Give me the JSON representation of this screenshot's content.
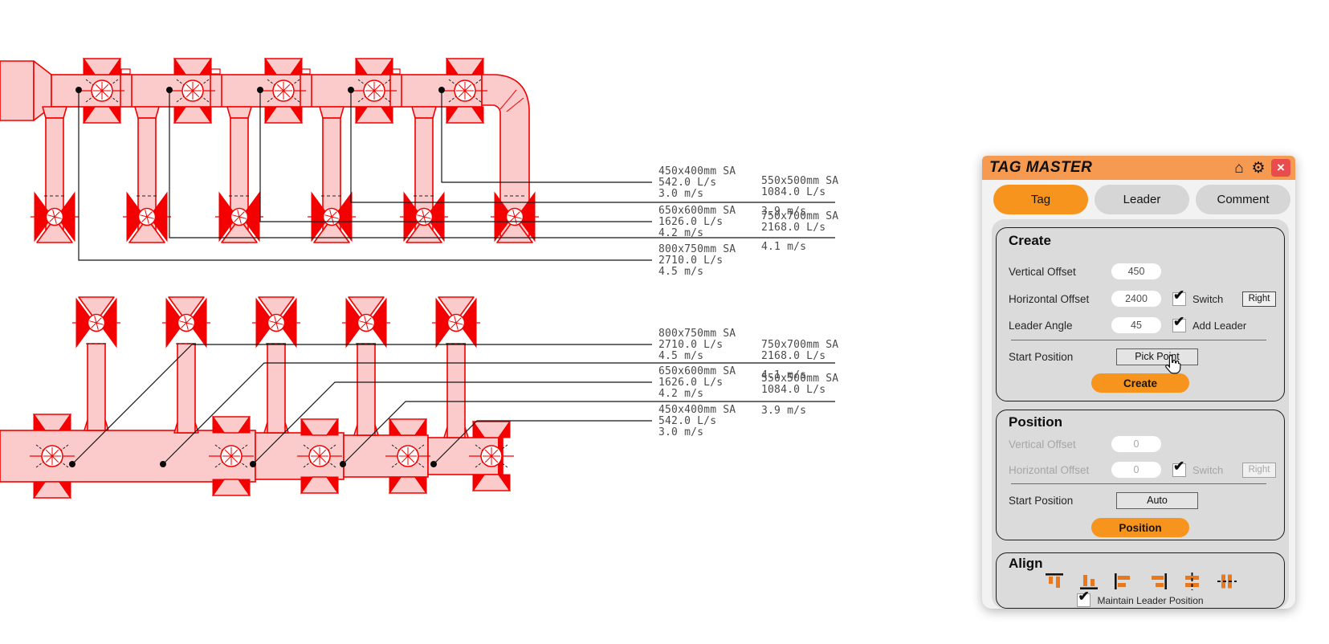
{
  "icons": {
    "home": "⌂",
    "gear": "⚙",
    "close": "×",
    "check": "✔"
  },
  "panel": {
    "title": "TAG MASTER",
    "tabs": [
      {
        "label": "Tag",
        "active": true
      },
      {
        "label": "Leader",
        "active": false
      },
      {
        "label": "Comment",
        "active": false
      }
    ],
    "create": {
      "heading": "Create",
      "vertical_offset_label": "Vertical Offset",
      "vertical_offset_value": "450",
      "horizontal_offset_label": "Horizontal Offset",
      "horizontal_offset_value": "2400",
      "switch_label": "Switch",
      "switch_checked": true,
      "right_button_label": "Right",
      "leader_angle_label": "Leader Angle",
      "leader_angle_value": "45",
      "add_leader_label": "Add Leader",
      "add_leader_checked": true,
      "start_position_label": "Start Position",
      "pick_point_label": "Pick Point",
      "create_button_label": "Create"
    },
    "position": {
      "heading": "Position",
      "vertical_offset_label": "Vertical Offset",
      "vertical_offset_value": "0",
      "horizontal_offset_label": "Horizontal Offset",
      "horizontal_offset_value": "0",
      "switch_label": "Switch",
      "switch_checked": true,
      "right_button_label": "Right",
      "start_position_label": "Start Position",
      "auto_label": "Auto",
      "position_button_label": "Position"
    },
    "align": {
      "heading": "Align",
      "buttons": [
        {
          "name": "align-top"
        },
        {
          "name": "align-bottom"
        },
        {
          "name": "align-left"
        },
        {
          "name": "align-right"
        },
        {
          "name": "align-center-vertical"
        },
        {
          "name": "align-center-horizontal"
        }
      ],
      "maintain_label": "Maintain Leader Position",
      "maintain_checked": true
    },
    "colors": {
      "header": "#f79a51",
      "accent": "#f7941d",
      "close": "#e84c4c",
      "icon_orange": "#e8781e"
    }
  },
  "drawing": {
    "colors": {
      "duct_fill": "#fbcaca",
      "duct_line": "#f40000",
      "leader": "#151515",
      "tag_text": "#4a4a4a"
    },
    "tags_top_left": [
      {
        "size": "450x400mm SA",
        "flow": "542.0 L/s",
        "velocity": "3.0 m/s"
      },
      {
        "size": "650x600mm SA",
        "flow": "1626.0 L/s",
        "velocity": "4.2 m/s"
      },
      {
        "size": "800x750mm SA",
        "flow": "2710.0 L/s",
        "velocity": "4.5 m/s"
      }
    ],
    "tags_top_right": [
      {
        "size": "550x500mm SA",
        "flow": "1084.0 L/s",
        "velocity": "3.9 m/s"
      },
      {
        "size": "750x700mm SA",
        "flow": "2168.0 L/s",
        "velocity": "4.1 m/s"
      }
    ],
    "tags_bottom_left": [
      {
        "size": "800x750mm SA",
        "flow": "2710.0 L/s",
        "velocity": "4.5 m/s"
      },
      {
        "size": "650x600mm SA",
        "flow": "1626.0 L/s",
        "velocity": "4.2 m/s"
      },
      {
        "size": "450x400mm SA",
        "flow": "542.0 L/s",
        "velocity": "3.0 m/s"
      }
    ],
    "tags_bottom_right": [
      {
        "size": "750x700mm SA",
        "flow": "2168.0 L/s",
        "velocity": "4.1 m/s"
      },
      {
        "size": "550x500mm SA",
        "flow": "1084.0 L/s",
        "velocity": "3.9 m/s"
      }
    ]
  }
}
